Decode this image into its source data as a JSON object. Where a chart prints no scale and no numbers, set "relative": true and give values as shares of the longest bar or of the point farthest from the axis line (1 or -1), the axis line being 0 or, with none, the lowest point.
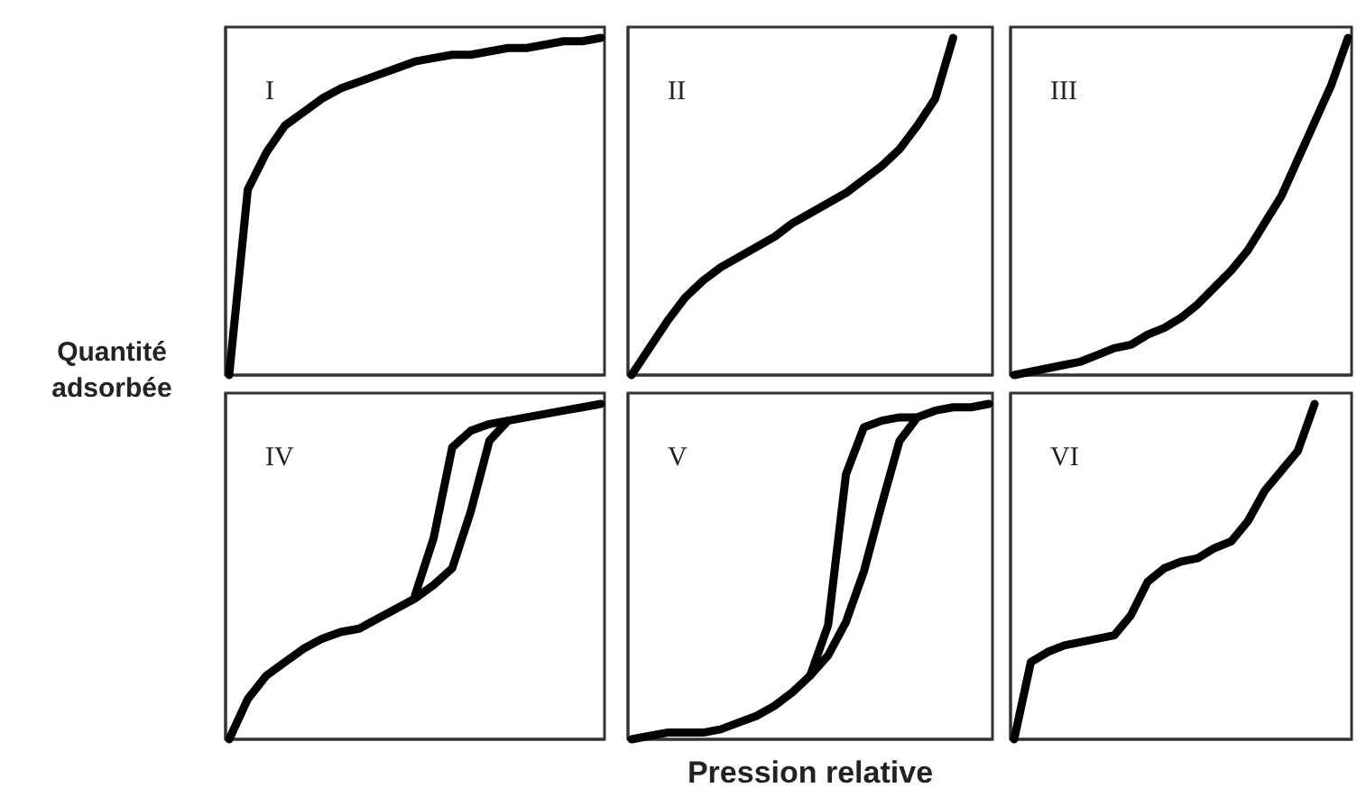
{
  "chart_data": [
    {
      "type": "line",
      "title": "I",
      "relative": true,
      "categories": [
        null,
        null,
        null,
        null,
        null,
        null,
        null,
        null,
        null,
        null,
        null,
        null,
        null,
        null,
        null,
        null,
        null,
        null,
        null,
        null,
        null
      ],
      "series": [
        {
          "color": "#000000",
          "values": [
            0,
            0.55,
            0.66,
            0.74,
            0.78,
            0.82,
            0.85,
            0.87,
            0.89,
            0.91,
            0.93,
            0.94,
            0.95,
            0.95,
            0.96,
            0.97,
            0.97,
            0.98,
            0.99,
            0.99,
            1
          ]
        }
      ]
    },
    {
      "type": "line",
      "title": "II",
      "relative": true,
      "categories": [
        null,
        null,
        null,
        null,
        null,
        null,
        null,
        null,
        null,
        null,
        null,
        null,
        null,
        null,
        null,
        null,
        null,
        null,
        null,
        null,
        null
      ],
      "series": [
        {
          "color": "#000000",
          "values": [
            0,
            0.08,
            0.16,
            0.23,
            0.28,
            0.32,
            0.35,
            0.38,
            0.41,
            0.45,
            0.48,
            0.51,
            0.54,
            0.58,
            0.62,
            0.67,
            0.74,
            0.82,
            1,
            null,
            null
          ]
        }
      ]
    },
    {
      "type": "line",
      "title": "III",
      "relative": true,
      "categories": [
        null,
        null,
        null,
        null,
        null,
        null,
        null,
        null,
        null,
        null,
        null,
        null,
        null,
        null,
        null,
        null,
        null,
        null,
        null,
        null,
        null
      ],
      "series": [
        {
          "color": "#000000",
          "values": [
            0,
            0.01,
            0.02,
            0.03,
            0.04,
            0.06,
            0.08,
            0.09,
            0.12,
            0.14,
            0.17,
            0.21,
            0.26,
            0.31,
            0.37,
            0.45,
            0.53,
            0.64,
            0.75,
            0.86,
            1
          ]
        }
      ]
    },
    {
      "type": "line",
      "title": "IV",
      "ylabel": "Quantité adsorbée",
      "relative": true,
      "categories": [
        null,
        null,
        null,
        null,
        null,
        null,
        null,
        null,
        null,
        null,
        null,
        null,
        null,
        null,
        null,
        null,
        null,
        null,
        null,
        null,
        null
      ],
      "series": [
        {
          "color": "#000000",
          "values": [
            0,
            0.12,
            0.19,
            0.23,
            0.27,
            0.3,
            0.32,
            0.33,
            0.36,
            0.39,
            0.42,
            0.46,
            0.51,
            0.68,
            0.89,
            0.95,
            0.96,
            0.97,
            0.98,
            0.99,
            1
          ]
        },
        {
          "color": "#000000",
          "values": [
            null,
            null,
            null,
            null,
            null,
            null,
            null,
            null,
            null,
            null,
            0.43,
            0.6,
            0.87,
            0.92,
            0.94,
            0.95,
            null,
            null,
            null,
            null,
            null
          ]
        }
      ]
    },
    {
      "type": "line",
      "title": "V",
      "xlabel": "Pression relative",
      "relative": true,
      "categories": [
        null,
        null,
        null,
        null,
        null,
        null,
        null,
        null,
        null,
        null,
        null,
        null,
        null,
        null,
        null,
        null,
        null,
        null,
        null,
        null,
        null
      ],
      "series": [
        {
          "color": "#000000",
          "values": [
            0,
            0.01,
            0.02,
            0.02,
            0.02,
            0.03,
            0.05,
            0.07,
            0.1,
            0.14,
            0.19,
            0.25,
            0.35,
            0.5,
            0.7,
            0.89,
            0.96,
            0.98,
            0.99,
            0.99,
            1
          ]
        },
        {
          "color": "#000000",
          "values": [
            null,
            null,
            null,
            null,
            null,
            null,
            null,
            null,
            null,
            null,
            0.19,
            0.34,
            0.79,
            0.93,
            0.95,
            0.96,
            0.96,
            null,
            null,
            null,
            null
          ]
        }
      ]
    },
    {
      "type": "line",
      "title": "VI",
      "relative": true,
      "categories": [
        null,
        null,
        null,
        null,
        null,
        null,
        null,
        null,
        null,
        null,
        null,
        null,
        null,
        null,
        null,
        null,
        null,
        null,
        null,
        null,
        null
      ],
      "series": [
        {
          "color": "#000000",
          "values": [
            0,
            0.23,
            0.26,
            0.28,
            0.29,
            0.3,
            0.31,
            0.37,
            0.47,
            0.51,
            0.53,
            0.54,
            0.57,
            0.59,
            0.65,
            0.74,
            0.8,
            0.86,
            1,
            null,
            null
          ]
        }
      ]
    }
  ]
}
